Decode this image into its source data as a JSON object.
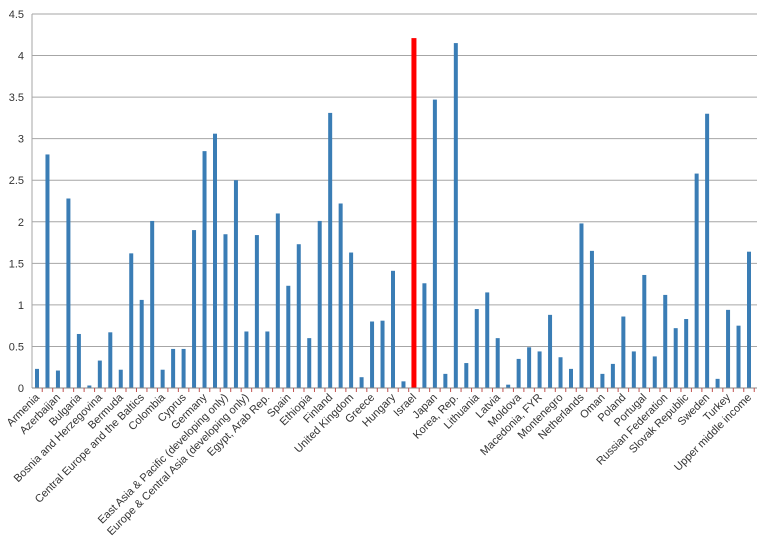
{
  "chart_data": {
    "type": "bar",
    "title": "",
    "xlabel": "",
    "ylabel": "",
    "ylim": [
      0,
      4.5
    ],
    "yticks": [
      "0",
      "0.5",
      "1",
      "1.5",
      "2",
      "2.5",
      "3",
      "3.5",
      "4",
      "4.5"
    ],
    "grid": true,
    "legend": "none",
    "colors": {
      "default": "#3a7db5",
      "highlight": "#ff0000",
      "grid": "#a6a6a6"
    },
    "highlight_category": "Israel",
    "categories": [
      "Armenia",
      "",
      "Azerbaijan",
      "",
      "Bulgaria",
      "",
      "Bosnia and Herzegovina",
      "",
      "Bermuda",
      "",
      "Central Europe and the Baltics",
      "",
      "Colombia",
      "",
      "Cyprus",
      "",
      "Germany",
      "",
      "East Asia & Pacific (developing only)",
      "",
      "Europe & Central Asia (developing only)",
      "",
      "Egypt, Arab Rep.",
      "",
      "Spain",
      "",
      "Ethiopia",
      "",
      "Finland",
      "",
      "United Kingdom",
      "",
      "Greece",
      "",
      "Hungary",
      "",
      "Israel",
      "",
      "Japan",
      "",
      "Korea, Rep.",
      "",
      "Lithuania",
      "",
      "Latvia",
      "",
      "Moldova",
      "",
      "Macedonia, FYR",
      "",
      "Montenegro",
      "",
      "Netherlands",
      "",
      "Oman",
      "",
      "Poland",
      "",
      "Portugal",
      "",
      "Russian Federation",
      "",
      "Slovak Republic",
      "",
      "Sweden",
      "",
      "Turkey",
      "",
      "Upper middle income"
    ],
    "values": [
      0.23,
      2.81,
      0.21,
      2.28,
      0.65,
      0.03,
      0.33,
      0.67,
      0.22,
      1.62,
      1.06,
      2.01,
      0.22,
      0.47,
      0.47,
      1.9,
      2.85,
      3.06,
      1.85,
      2.5,
      0.68,
      1.84,
      0.68,
      2.1,
      1.23,
      1.73,
      0.6,
      2.01,
      3.31,
      2.22,
      1.63,
      0.13,
      0.8,
      0.81,
      1.41,
      0.08,
      4.21,
      1.26,
      3.47,
      0.17,
      4.15,
      0.3,
      0.95,
      1.15,
      0.6,
      0.04,
      0.35,
      0.49,
      0.44,
      0.88,
      0.37,
      0.23,
      1.98,
      1.65,
      0.17,
      0.29,
      0.86,
      0.44,
      1.36,
      0.38,
      1.12,
      0.72,
      0.83,
      2.58,
      3.3,
      0.11,
      0.94,
      0.75,
      1.64
    ]
  }
}
